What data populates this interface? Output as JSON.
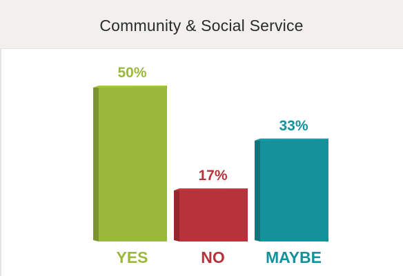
{
  "header": {
    "title": "Community & Social Service"
  },
  "chart_data": {
    "type": "bar",
    "title": "Community & Social Service",
    "categories": [
      "YES",
      "NO",
      "MAYBE"
    ],
    "values": [
      50,
      17,
      33
    ],
    "value_labels": [
      "50%",
      "17%",
      "33%"
    ],
    "unit": "%",
    "ylim": [
      0,
      50
    ],
    "grid": false,
    "legend": "none",
    "colors": {
      "YES": "#9ab93c",
      "NO": "#b7323a",
      "MAYBE": "#15919c"
    }
  }
}
